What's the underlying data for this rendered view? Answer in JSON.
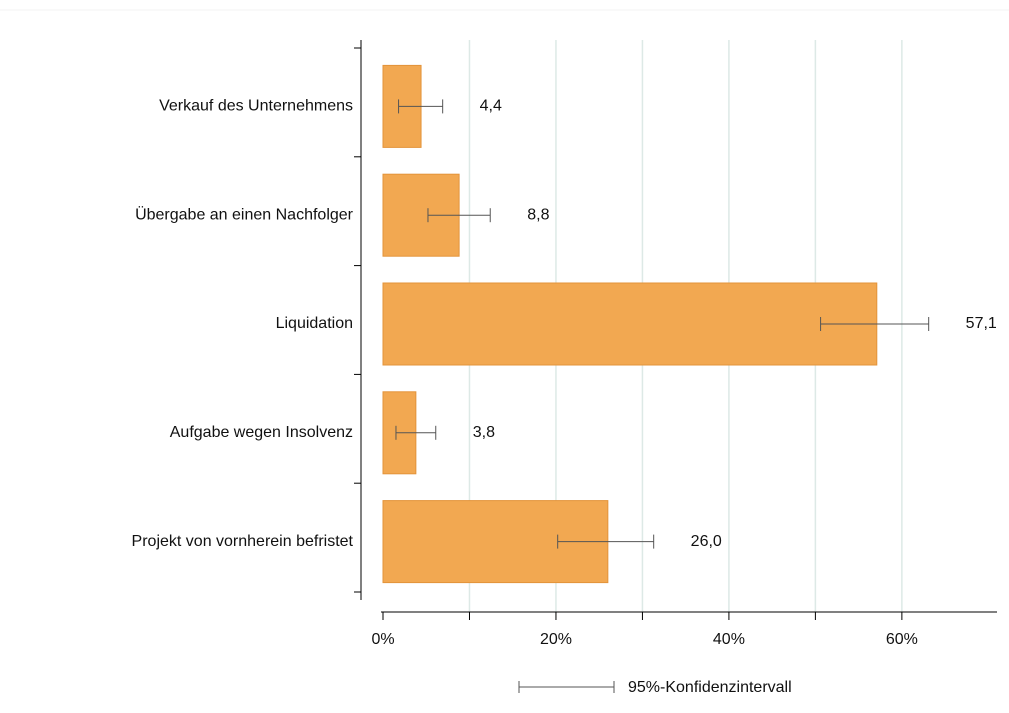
{
  "chart_data": {
    "type": "barh",
    "categories": [
      "Verkauf des Unternehmens",
      "Übergabe an einen Nachfolger",
      "Liquidation",
      "Aufgabe wegen Insolvenz",
      "Projekt von vornherein befristet"
    ],
    "values": [
      4.4,
      8.8,
      57.1,
      3.8,
      26.0
    ],
    "value_labels": [
      "4,4",
      "8,8",
      "57,1",
      "3,8",
      "26,0"
    ],
    "ci_low": [
      1.8,
      5.2,
      50.6,
      1.5,
      20.2
    ],
    "ci_high": [
      6.9,
      12.4,
      63.1,
      6.1,
      31.3
    ],
    "color": "#f2a851",
    "error_color": "#555555",
    "legend_label": "95%-Konfidenzintervall",
    "xlim": [
      0,
      71
    ],
    "xticks": [
      {
        "value": 0,
        "label": "0%"
      },
      {
        "value": 20,
        "label": "20%"
      },
      {
        "value": 40,
        "label": "40%"
      },
      {
        "value": 60,
        "label": "60%"
      }
    ],
    "xminor_ticks": [
      10,
      30,
      50
    ],
    "grid": true
  }
}
